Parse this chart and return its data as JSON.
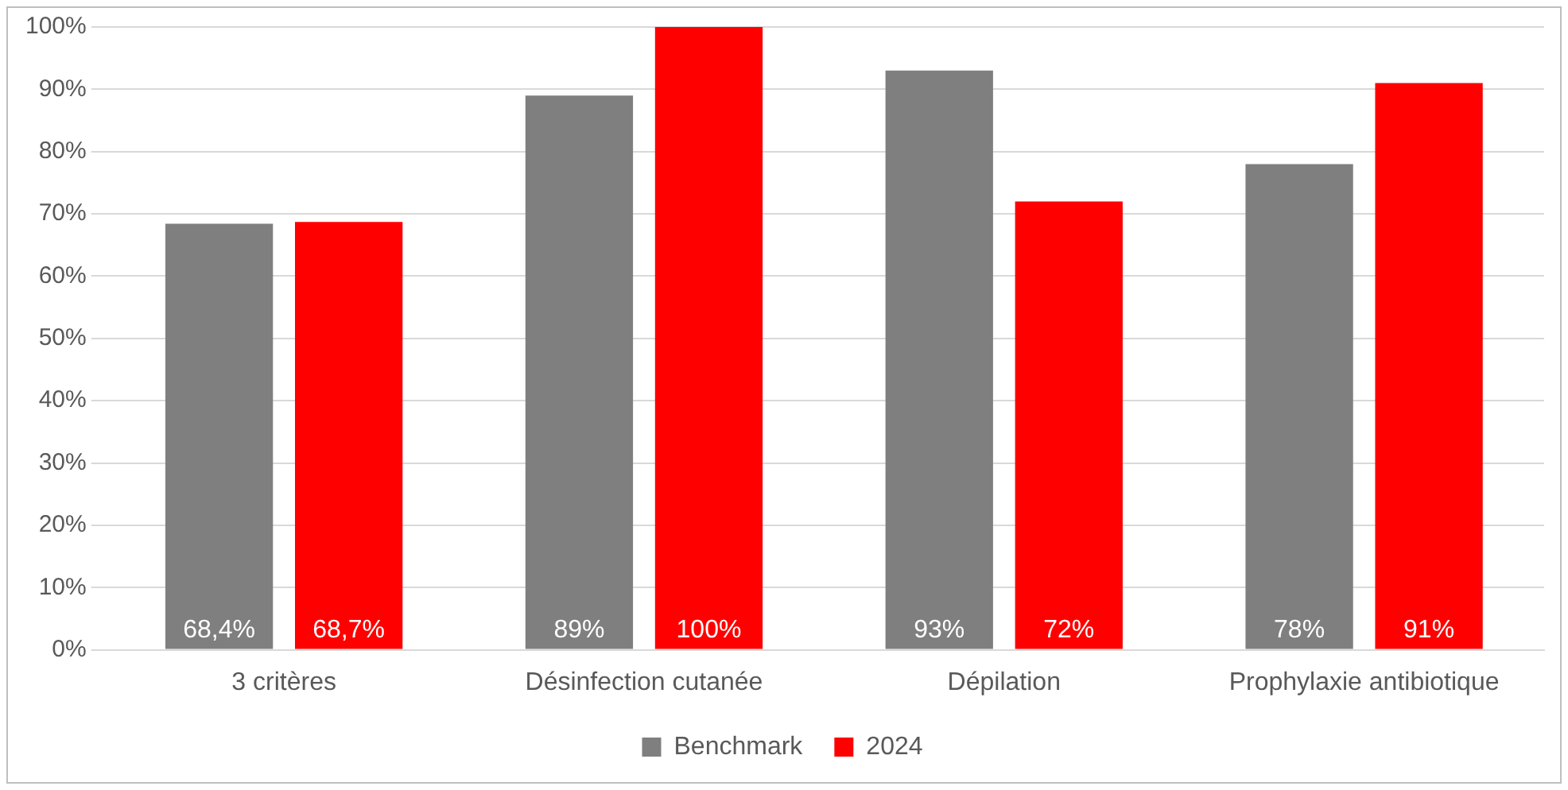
{
  "chart_data": {
    "type": "bar",
    "categories": [
      "3 critères",
      "Désinfection cutanée",
      "Dépilation",
      "Prophylaxie antibiotique"
    ],
    "series": [
      {
        "name": "Benchmark",
        "color": "#7f7f7f",
        "values": [
          68.4,
          89,
          93,
          78
        ],
        "value_labels": [
          "68,4%",
          "89%",
          "93%",
          "78%"
        ]
      },
      {
        "name": "2024",
        "color": "#ff0000",
        "values": [
          68.7,
          100,
          72,
          91
        ],
        "value_labels": [
          "68,7%",
          "100%",
          "72%",
          "91%"
        ]
      }
    ],
    "ylim": [
      0,
      100
    ],
    "yticks": [
      {
        "value": 0,
        "label": "0%"
      },
      {
        "value": 10,
        "label": "10%"
      },
      {
        "value": 20,
        "label": "20%"
      },
      {
        "value": 30,
        "label": "30%"
      },
      {
        "value": 40,
        "label": "40%"
      },
      {
        "value": 50,
        "label": "50%"
      },
      {
        "value": 60,
        "label": "60%"
      },
      {
        "value": 70,
        "label": "70%"
      },
      {
        "value": 80,
        "label": "80%"
      },
      {
        "value": 90,
        "label": "90%"
      },
      {
        "value": 100,
        "label": "100%"
      }
    ],
    "grid": "y",
    "legend": "bottom"
  }
}
